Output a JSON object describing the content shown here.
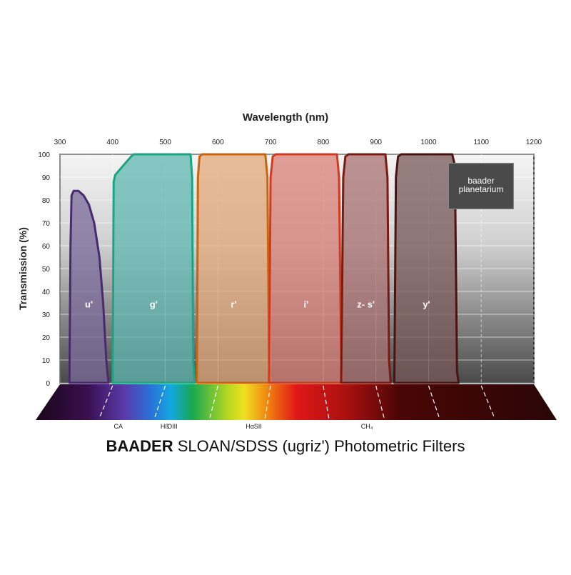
{
  "chart_data": {
    "type": "area",
    "title": "Wavelength (nm)",
    "xlabel": "Wavelength (nm)",
    "ylabel": "Transmission (%)",
    "xlim": [
      300,
      1200
    ],
    "ylim": [
      0,
      100
    ],
    "xticks": [
      300,
      400,
      500,
      600,
      700,
      800,
      900,
      1000,
      1100,
      1200
    ],
    "yticks": [
      0,
      10,
      20,
      30,
      40,
      50,
      60,
      70,
      80,
      90,
      100
    ],
    "grid": true,
    "x_axis_position": "top",
    "series": [
      {
        "name": "u'",
        "color": "#4a2a6e",
        "fill": "#7a6a9a",
        "points": [
          [
            318,
            0
          ],
          [
            320,
            60
          ],
          [
            322,
            82
          ],
          [
            326,
            84
          ],
          [
            335,
            84
          ],
          [
            345,
            82
          ],
          [
            355,
            78
          ],
          [
            365,
            70
          ],
          [
            375,
            55
          ],
          [
            382,
            35
          ],
          [
            388,
            10
          ],
          [
            392,
            0
          ]
        ]
      },
      {
        "name": "g'",
        "color": "#1aa582",
        "fill": "#5fb7b0",
        "points": [
          [
            400,
            0
          ],
          [
            402,
            88
          ],
          [
            405,
            91
          ],
          [
            420,
            95
          ],
          [
            435,
            99
          ],
          [
            440,
            100
          ],
          [
            548,
            100
          ],
          [
            551,
            90
          ],
          [
            553,
            10
          ],
          [
            556,
            0
          ]
        ]
      },
      {
        "name": "r'",
        "color": "#c8640e",
        "fill": "#e3a878",
        "points": [
          [
            560,
            0
          ],
          [
            562,
            90
          ],
          [
            565,
            99
          ],
          [
            570,
            100
          ],
          [
            690,
            100
          ],
          [
            694,
            90
          ],
          [
            697,
            10
          ],
          [
            700,
            0
          ]
        ]
      },
      {
        "name": "i'",
        "color": "#d33a1c",
        "fill": "#d98078",
        "points": [
          [
            697,
            0
          ],
          [
            700,
            90
          ],
          [
            704,
            99
          ],
          [
            710,
            100
          ],
          [
            826,
            100
          ],
          [
            830,
            90
          ],
          [
            834,
            10
          ],
          [
            838,
            0
          ]
        ]
      },
      {
        "name": "z- s'",
        "color": "#7a1a10",
        "fill": "#a87070",
        "points": [
          [
            834,
            0
          ],
          [
            838,
            90
          ],
          [
            842,
            99
          ],
          [
            848,
            100
          ],
          [
            918,
            100
          ],
          [
            922,
            90
          ],
          [
            925,
            10
          ],
          [
            928,
            0
          ]
        ]
      },
      {
        "name": "y'",
        "color": "#4a1410",
        "fill": "#7a5858",
        "points": [
          [
            935,
            0
          ],
          [
            938,
            90
          ],
          [
            942,
            99
          ],
          [
            948,
            100
          ],
          [
            1045,
            100
          ],
          [
            1050,
            95
          ],
          [
            1052,
            50
          ],
          [
            1054,
            5
          ],
          [
            1057,
            0
          ]
        ]
      }
    ],
    "line_annotations": [
      "CA",
      "Hß",
      "OIII",
      "Hα",
      "SII",
      "CH₄"
    ],
    "line_wavelengths": [
      393,
      486,
      501,
      656,
      672,
      890
    ]
  },
  "footer": {
    "brand": "BAADER",
    "title": " SLOAN/SDSS (ugriz') Photometric Filters"
  },
  "logo": {
    "line1": "baader",
    "line2": "planetarium"
  }
}
